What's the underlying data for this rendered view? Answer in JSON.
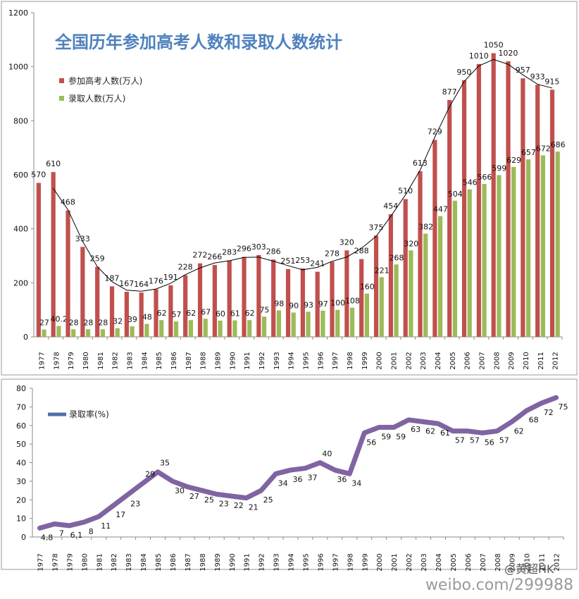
{
  "colors": {
    "candidates": "#c0504d",
    "admitted": "#9bbb59",
    "rate": "#8064a2",
    "trend": "#000000",
    "title": "#4f81bd"
  },
  "watermark": {
    "handle": "@黄超HK",
    "url": "weibo.com/299988"
  },
  "chart_data": [
    {
      "type": "bar",
      "title": "全国历年参加高考人数和录取人数统计",
      "categories": [
        "1977",
        "1978",
        "1979",
        "1980",
        "1981",
        "1982",
        "1983",
        "1984",
        "1985",
        "1986",
        "1987",
        "1988",
        "1989",
        "1990",
        "1991",
        "1992",
        "1993",
        "1994",
        "1995",
        "1996",
        "1997",
        "1998",
        "1999",
        "2000",
        "2001",
        "2002",
        "2003",
        "2004",
        "2005",
        "2006",
        "2007",
        "2008",
        "2009",
        "2010",
        "2011",
        "2012"
      ],
      "series": [
        {
          "name": "参加高考人数(万人)",
          "values": [
            570,
            610,
            468,
            333,
            259,
            187,
            167,
            164,
            176,
            191,
            228,
            272,
            266,
            283,
            296,
            303,
            286,
            251,
            253,
            241,
            278,
            320,
            288,
            375,
            454,
            510,
            613,
            729,
            877,
            950,
            1010,
            1050,
            1020,
            957,
            933,
            915
          ]
        },
        {
          "name": "录取人数(万人)",
          "values": [
            27,
            40.2,
            28,
            28,
            28,
            32,
            39,
            48,
            62,
            57,
            62,
            67,
            60,
            61,
            62,
            75,
            98,
            90,
            93,
            97,
            100,
            108,
            160,
            221,
            268,
            320,
            382,
            447,
            504,
            546,
            566,
            599,
            629,
            657,
            672,
            686
          ]
        }
      ],
      "trendline": "参加高考人数(万人)",
      "ylim": [
        0,
        1200
      ],
      "yticks": [
        0,
        200,
        400,
        600,
        800,
        1000,
        1200
      ],
      "legend": "top-left"
    },
    {
      "type": "line",
      "categories": [
        "1977",
        "1978",
        "1979",
        "1980",
        "1981",
        "1982",
        "1983",
        "1984",
        "1985",
        "1986",
        "1987",
        "1988",
        "1989",
        "1990",
        "1991",
        "1992",
        "1993",
        "1994",
        "1995",
        "1996",
        "1997",
        "1998",
        "1999",
        "2000",
        "2001",
        "2002",
        "2003",
        "2004",
        "2005",
        "2006",
        "2007",
        "2008",
        "2009",
        "2010",
        "2011",
        "2012"
      ],
      "series": [
        {
          "name": "录取率(%)",
          "values": [
            4.8,
            7,
            6.1,
            8,
            11,
            17,
            23,
            29,
            35,
            30,
            27,
            25,
            23,
            22,
            21,
            25,
            34,
            36,
            37,
            40,
            36,
            34,
            56,
            59,
            59,
            63,
            62,
            61,
            57,
            57,
            56,
            57,
            62,
            68,
            72,
            75
          ]
        }
      ],
      "ylim": [
        0,
        80
      ],
      "yticks": [
        0,
        10,
        20,
        30,
        40,
        50,
        60,
        70,
        80
      ],
      "legend": "top-left"
    }
  ]
}
